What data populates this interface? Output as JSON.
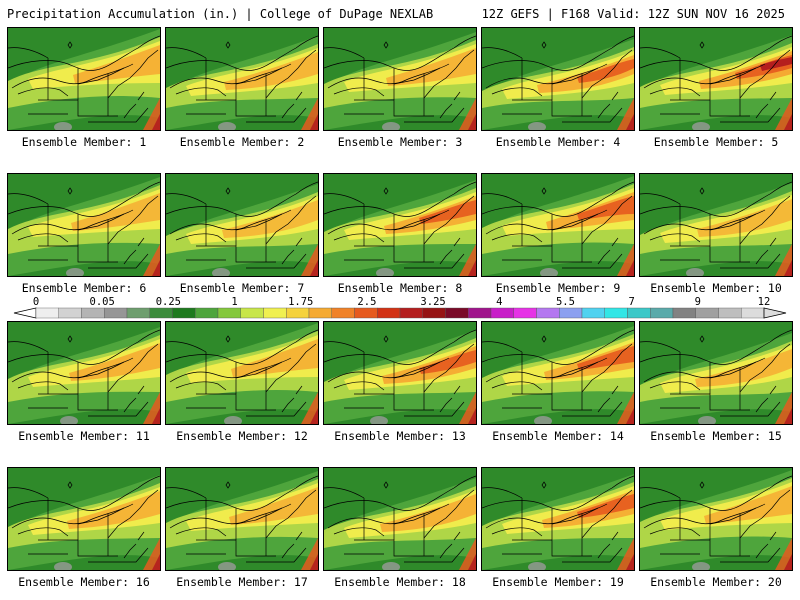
{
  "header": {
    "title_left": "Precipitation Accumulation (in.) | College of DuPage NEXLAB",
    "title_right": "12Z GEFS | F168 Valid: 12Z SUN NOV 16 2025"
  },
  "panels": [
    {
      "label": "Ensemble Member: 1",
      "intensity": 0.7
    },
    {
      "label": "Ensemble Member: 2",
      "intensity": 0.55
    },
    {
      "label": "Ensemble Member: 3",
      "intensity": 0.6
    },
    {
      "label": "Ensemble Member: 4",
      "intensity": 0.8
    },
    {
      "label": "Ensemble Member: 5",
      "intensity": 1.0
    },
    {
      "label": "Ensemble Member: 6",
      "intensity": 0.5
    },
    {
      "label": "Ensemble Member: 7",
      "intensity": 0.4
    },
    {
      "label": "Ensemble Member: 8",
      "intensity": 0.75
    },
    {
      "label": "Ensemble Member: 9",
      "intensity": 0.85
    },
    {
      "label": "Ensemble Member: 10",
      "intensity": 0.45
    },
    {
      "label": "Ensemble Member: 11",
      "intensity": 0.7
    },
    {
      "label": "Ensemble Member: 12",
      "intensity": 0.65
    },
    {
      "label": "Ensemble Member: 13",
      "intensity": 0.9
    },
    {
      "label": "Ensemble Member: 14",
      "intensity": 0.8
    },
    {
      "label": "Ensemble Member: 15",
      "intensity": 0.55
    },
    {
      "label": "Ensemble Member: 16",
      "intensity": 0.6
    },
    {
      "label": "Ensemble Member: 17",
      "intensity": 0.5
    },
    {
      "label": "Ensemble Member: 18",
      "intensity": 0.7
    },
    {
      "label": "Ensemble Member: 19",
      "intensity": 0.75
    },
    {
      "label": "Ensemble Member: 20",
      "intensity": 0.6
    }
  ],
  "scale": {
    "labels": [
      "0",
      "0.05",
      "0.25",
      "1",
      "1.75",
      "2.5",
      "3.25",
      "4",
      "5.5",
      "7",
      "9",
      "12"
    ],
    "colors": [
      "#eeeeee",
      "#d2d2d2",
      "#b4b4b4",
      "#969696",
      "#6e9e6e",
      "#3c8c3c",
      "#1e7a1e",
      "#4ea53c",
      "#84c83c",
      "#c8e64a",
      "#f0f050",
      "#f5d23c",
      "#f5aa32",
      "#f08228",
      "#e65a1e",
      "#d23214",
      "#b41e1e",
      "#961414",
      "#7a0a28",
      "#a0148c",
      "#c81ec8",
      "#e632e6",
      "#b478f0",
      "#8ca0f0",
      "#50d2f0",
      "#32e6e6",
      "#3cc8c8",
      "#5aaaaa",
      "#828282",
      "#a0a0a0",
      "#bebebe",
      "#dcdcdc"
    ]
  }
}
